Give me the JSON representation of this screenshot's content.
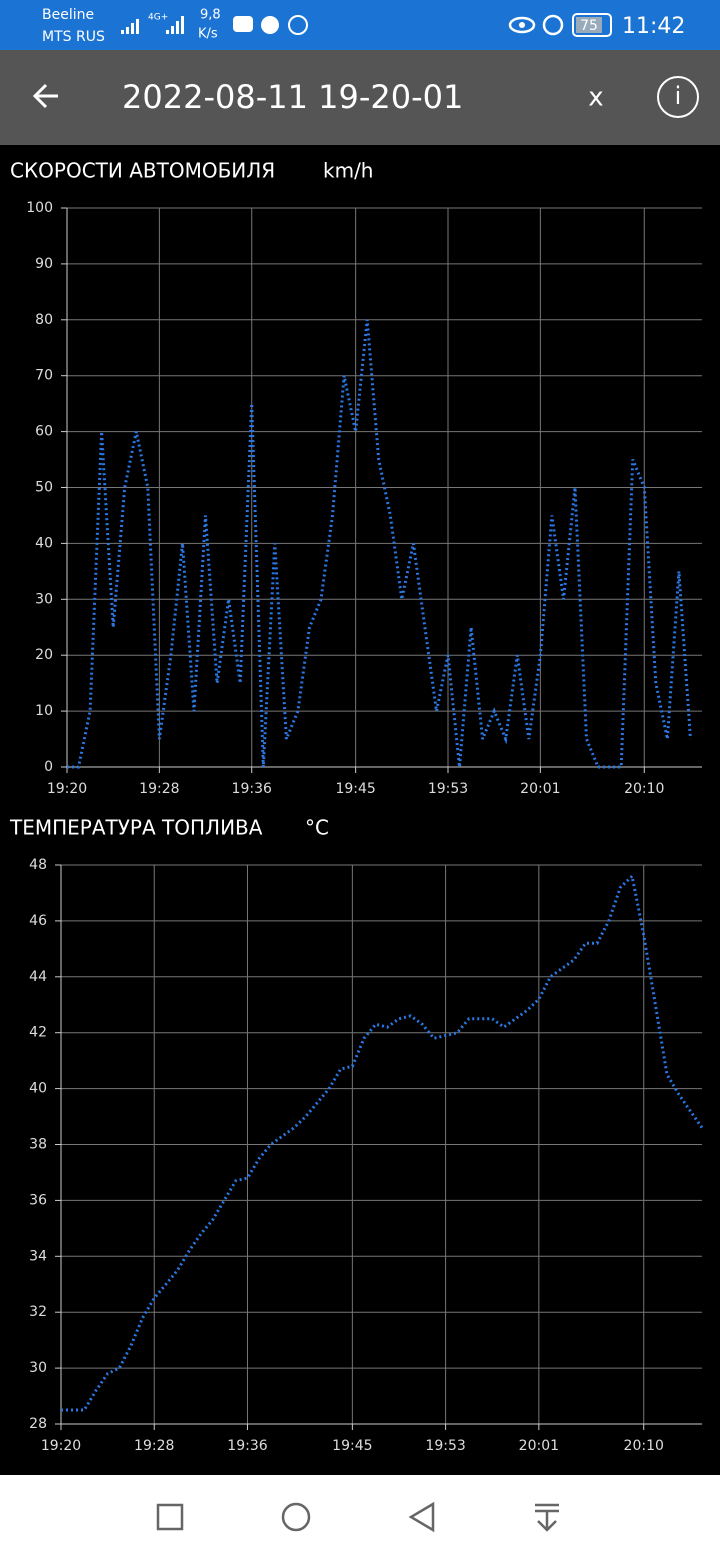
{
  "status_bar": {
    "carrier_1": "Beeline",
    "carrier_2": "MTS RUS",
    "network": "4G+",
    "net_speed": "9,8",
    "net_speed_unit": "K/s",
    "battery": "75",
    "time": "11:42"
  },
  "header": {
    "title": "2022-08-11 19-20-01",
    "close": "x",
    "info": "i"
  },
  "chart_data": [
    {
      "type": "line",
      "title": "СКОРОСТИ АВТОМОБИЛЯ",
      "unit": "km/h",
      "color": "#2a78e4",
      "x": [
        "19:20",
        "19:21",
        "19:22",
        "19:23",
        "19:24",
        "19:25",
        "19:26",
        "19:27",
        "19:28",
        "19:29",
        "19:30",
        "19:31",
        "19:32",
        "19:33",
        "19:34",
        "19:35",
        "19:36",
        "19:37",
        "19:38",
        "19:39",
        "19:40",
        "19:41",
        "19:42",
        "19:43",
        "19:44",
        "19:45",
        "19:46",
        "19:47",
        "19:48",
        "19:49",
        "19:50",
        "19:51",
        "19:52",
        "19:53",
        "19:54",
        "19:55",
        "19:56",
        "19:57",
        "19:58",
        "19:59",
        "20:00",
        "20:01",
        "20:02",
        "20:03",
        "20:04",
        "20:05",
        "20:06",
        "20:07",
        "20:08",
        "20:09",
        "20:10",
        "20:11",
        "20:12",
        "20:13",
        "20:14"
      ],
      "values": [
        0,
        0,
        10,
        60,
        25,
        50,
        60,
        50,
        5,
        20,
        40,
        10,
        45,
        15,
        30,
        15,
        65,
        0,
        40,
        5,
        10,
        25,
        30,
        45,
        70,
        60,
        80,
        55,
        45,
        30,
        40,
        25,
        10,
        20,
        0,
        25,
        5,
        10,
        5,
        20,
        5,
        20,
        45,
        30,
        50,
        5,
        0,
        0,
        0,
        55,
        50,
        15,
        5,
        35,
        5
      ],
      "xlim": [
        "19:20",
        "20:15"
      ],
      "xticks": [
        "19:20",
        "19:28",
        "19:36",
        "19:45",
        "19:53",
        "20:01",
        "20:10"
      ],
      "ylim": [
        0,
        100
      ],
      "yticks": [
        0,
        10,
        20,
        30,
        40,
        50,
        60,
        70,
        80,
        90,
        100
      ],
      "grid": true
    },
    {
      "type": "line",
      "title": "ТЕМПЕРАТУРА ТОПЛИВА",
      "unit": "°C",
      "color": "#2a78e4",
      "x": [
        "19:20",
        "19:21",
        "19:22",
        "19:23",
        "19:24",
        "19:25",
        "19:26",
        "19:27",
        "19:28",
        "19:29",
        "19:30",
        "19:31",
        "19:32",
        "19:33",
        "19:34",
        "19:35",
        "19:36",
        "19:37",
        "19:38",
        "19:39",
        "19:40",
        "19:41",
        "19:42",
        "19:43",
        "19:44",
        "19:45",
        "19:46",
        "19:47",
        "19:48",
        "19:49",
        "19:50",
        "19:51",
        "19:52",
        "19:53",
        "19:54",
        "19:55",
        "19:56",
        "19:57",
        "19:58",
        "19:59",
        "20:00",
        "20:01",
        "20:02",
        "20:03",
        "20:04",
        "20:05",
        "20:06",
        "20:07",
        "20:08",
        "20:09",
        "20:10",
        "20:11",
        "20:12",
        "20:13",
        "20:14",
        "20:15"
      ],
      "values": [
        28.5,
        28.5,
        28.5,
        29.2,
        29.8,
        30,
        30.8,
        31.8,
        32.5,
        33,
        33.5,
        34.2,
        34.8,
        35.3,
        36,
        36.7,
        36.8,
        37.5,
        38,
        38.3,
        38.6,
        39,
        39.5,
        40,
        40.7,
        40.8,
        41.8,
        42.3,
        42.2,
        42.5,
        42.6,
        42.3,
        41.8,
        41.9,
        42,
        42.5,
        42.5,
        42.5,
        42.2,
        42.5,
        42.8,
        43.2,
        44,
        44.3,
        44.6,
        45.2,
        45.2,
        46,
        47.2,
        47.6,
        45.5,
        43,
        40.5,
        39.8,
        39.2,
        38.6
      ],
      "xlim": [
        "19:20",
        "20:15"
      ],
      "xticks": [
        "19:20",
        "19:28",
        "19:36",
        "19:45",
        "19:53",
        "20:01",
        "20:10"
      ],
      "ylim": [
        28,
        48
      ],
      "yticks": [
        28,
        30,
        32,
        34,
        36,
        38,
        40,
        42,
        44,
        46,
        48
      ],
      "grid": true
    }
  ]
}
